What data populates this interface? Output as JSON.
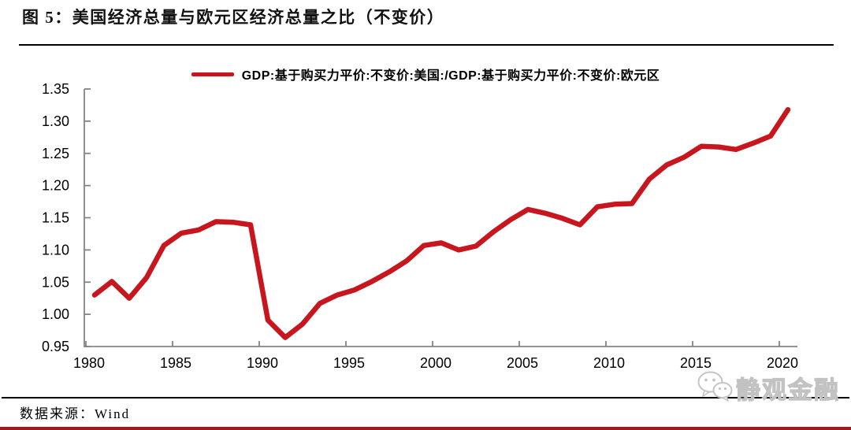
{
  "page": {
    "title": "图 5：美国经济总量与欧元区经济总量之比（不变价）",
    "source": "数据来源：Wind",
    "watermark": "静观金融"
  },
  "colors": {
    "line": "#C8161E",
    "axis": "#848484",
    "text": "#000000",
    "watermark_gray": "#C9C9C9",
    "bottom_bar": "#9B1B1F"
  },
  "chart_data": {
    "type": "line",
    "title": "图 5：美国经济总量与欧元区经济总量之比（不变价）",
    "legend_position": "top",
    "grid": false,
    "xlabel": "",
    "ylabel": "",
    "ylim": [
      0.95,
      1.35
    ],
    "yticks": [
      0.95,
      1.0,
      1.05,
      1.1,
      1.15,
      1.2,
      1.25,
      1.3,
      1.35
    ],
    "xticks": [
      1980,
      1985,
      1990,
      1995,
      2000,
      2005,
      2010,
      2015,
      2020
    ],
    "x": [
      1980,
      1981,
      1982,
      1983,
      1984,
      1985,
      1986,
      1987,
      1988,
      1989,
      1990,
      1991,
      1992,
      1993,
      1994,
      1995,
      1996,
      1997,
      1998,
      1999,
      2000,
      2001,
      2002,
      2003,
      2004,
      2005,
      2006,
      2007,
      2008,
      2009,
      2010,
      2011,
      2012,
      2013,
      2014,
      2015,
      2016,
      2017,
      2018,
      2019,
      2020
    ],
    "series": [
      {
        "name": "GDP:基于购买力平价:不变价:美国:/GDP:基于购买力平价:不变价:欧元区",
        "color": "#C8161E",
        "values": [
          1.03,
          1.051,
          1.025,
          1.057,
          1.107,
          1.126,
          1.131,
          1.144,
          1.143,
          1.139,
          0.991,
          0.964,
          0.985,
          1.017,
          1.03,
          1.038,
          1.051,
          1.066,
          1.083,
          1.107,
          1.111,
          1.1,
          1.106,
          1.128,
          1.147,
          1.163,
          1.157,
          1.149,
          1.139,
          1.167,
          1.171,
          1.172,
          1.21,
          1.232,
          1.244,
          1.261,
          1.26,
          1.256,
          1.266,
          1.277,
          1.318
        ]
      }
    ]
  }
}
